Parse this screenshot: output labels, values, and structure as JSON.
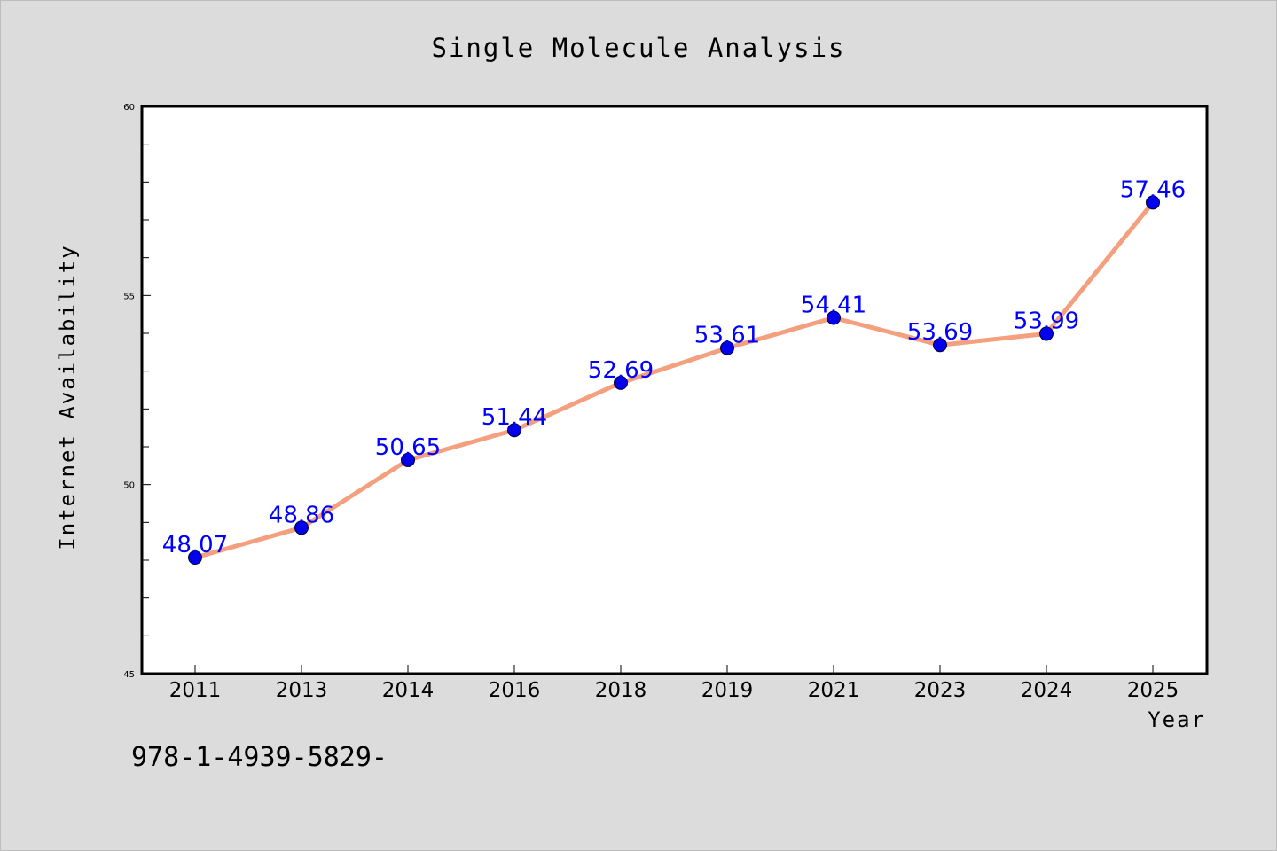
{
  "chart_data": {
    "type": "line",
    "title": "Single Molecule Analysis",
    "xlabel": "Year",
    "ylabel": "Internet Availability",
    "categories": [
      "2011",
      "2013",
      "2014",
      "2016",
      "2018",
      "2019",
      "2021",
      "2023",
      "2024",
      "2025"
    ],
    "series": [
      {
        "values": [
          48.07,
          48.86,
          50.65,
          51.44,
          52.69,
          53.61,
          54.41,
          53.69,
          53.99,
          57.46
        ],
        "labels": [
          "48.07",
          "48.86",
          "50.65",
          "51.44",
          "52.69",
          "53.61",
          "54.41",
          "53.69",
          "53.99",
          "57.46"
        ],
        "line_color": "#f4a07e",
        "marker_color": "#0000ee"
      }
    ],
    "ylim": [
      45,
      60
    ],
    "y_major_ticks": [
      45,
      50,
      55,
      60
    ],
    "y_minor_step": 1,
    "y_tick_labels": [
      "45",
      "50",
      "55",
      "60"
    ],
    "grid": false,
    "data_label_color": "#0000ff"
  },
  "footnote": "978-1-4939-5829-"
}
